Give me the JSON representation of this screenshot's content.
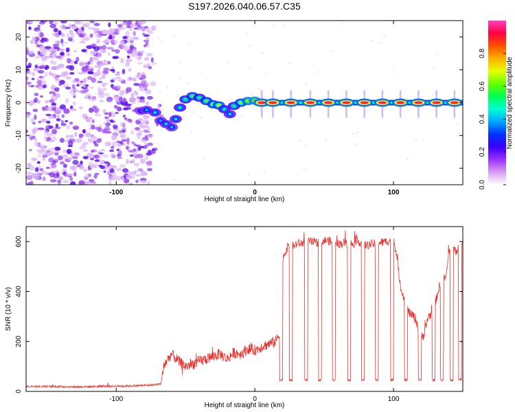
{
  "figure_title": "S197.2026.040.06.57.C35",
  "colorbar": {
    "label": "Normalized spectral amplitude",
    "ticks": [
      "0.0",
      "0.2",
      "0.4",
      "0.6",
      "0.8"
    ],
    "tick_values": [
      0.0,
      0.2,
      0.4,
      0.6,
      0.8
    ],
    "range": [
      0,
      1
    ],
    "colormap": [
      "#ffffff",
      "#d89cf0",
      "#9b30ff",
      "#3a00ff",
      "#0033ff",
      "#00a8ff",
      "#00ffd5",
      "#00ff50",
      "#66ff00",
      "#e6ff00",
      "#ffb000",
      "#ff5000",
      "#ff0040",
      "#ff40c0"
    ]
  },
  "chart_data": [
    {
      "type": "heatmap",
      "title": "",
      "xlabel": "Height of straight line (km)",
      "ylabel": "Frequency (Hz)",
      "xlim": [
        -165,
        150
      ],
      "ylim": [
        -25,
        25
      ],
      "x_ticks": [
        "-100",
        "0",
        "100"
      ],
      "x_tick_values": [
        -100,
        0,
        100
      ],
      "y_ticks": [
        "-20",
        "-10",
        "0",
        "10",
        "20"
      ],
      "y_tick_values": [
        -20,
        -10,
        0,
        10,
        20
      ],
      "noise_region_x": [
        -165,
        -75
      ],
      "noise_amplitude": 0.15,
      "signal_track": [
        {
          "x": -82,
          "y": -2.5,
          "amp": 0.35
        },
        {
          "x": -78,
          "y": -2.2,
          "amp": 0.4
        },
        {
          "x": -72,
          "y": -3.0,
          "amp": 0.45
        },
        {
          "x": -68,
          "y": -5.5,
          "amp": 0.4
        },
        {
          "x": -64,
          "y": -6.5,
          "amp": 0.45
        },
        {
          "x": -60,
          "y": -7.5,
          "amp": 0.4
        },
        {
          "x": -57,
          "y": -5.0,
          "amp": 0.45
        },
        {
          "x": -54,
          "y": -1.5,
          "amp": 0.5
        },
        {
          "x": -50,
          "y": 1.0,
          "amp": 0.55
        },
        {
          "x": -45,
          "y": 2.0,
          "amp": 0.6
        },
        {
          "x": -40,
          "y": 1.5,
          "amp": 0.55
        },
        {
          "x": -35,
          "y": 0.5,
          "amp": 0.6
        },
        {
          "x": -30,
          "y": -0.5,
          "amp": 0.65
        },
        {
          "x": -26,
          "y": -0.8,
          "amp": 0.7
        },
        {
          "x": -22,
          "y": -2.0,
          "amp": 0.5
        },
        {
          "x": -18,
          "y": -3.5,
          "amp": 0.45
        },
        {
          "x": -15,
          "y": -1.0,
          "amp": 0.55
        },
        {
          "x": -10,
          "y": 0.0,
          "amp": 0.65
        },
        {
          "x": -5,
          "y": 0.5,
          "amp": 0.75
        },
        {
          "x": 0,
          "y": 0.6,
          "amp": 0.8
        }
      ],
      "stable_segments_x": [
        5,
        13,
        26,
        40,
        53,
        66,
        79,
        92,
        105,
        118,
        131,
        144
      ],
      "stable_frequency": 0.0,
      "stable_amplitude": 0.95
    },
    {
      "type": "line",
      "title": "",
      "xlabel": "Height of straight line (km)",
      "ylabel": "SNR (10 * v/v)",
      "xlim": [
        -165,
        150
      ],
      "ylim": [
        0,
        660
      ],
      "x_ticks": [
        "-100",
        "0",
        "100"
      ],
      "x_tick_values": [
        -100,
        0,
        100
      ],
      "y_ticks": [
        "0",
        "200",
        "400",
        "600"
      ],
      "y_tick_values": [
        0,
        200,
        400,
        600
      ],
      "color": "#e8302c",
      "series": [
        {
          "x": [
            -165,
            -150,
            -130,
            -110,
            -90,
            -75,
            -68,
            -65,
            -60,
            -55,
            -50,
            -45,
            -40,
            -35,
            -30,
            -25,
            -20,
            -15,
            -10,
            -5,
            0,
            5,
            10,
            15,
            18,
            20,
            22,
            24,
            26,
            28,
            30,
            35,
            40,
            45,
            50,
            55,
            60,
            65,
            70,
            75,
            80,
            85,
            90,
            95,
            100,
            102,
            105,
            108,
            110,
            112,
            115,
            118,
            120,
            122,
            125,
            128,
            130,
            133,
            135,
            138,
            140,
            143,
            145,
            148,
            150
          ],
          "y": [
            20,
            20,
            18,
            20,
            22,
            25,
            30,
            110,
            150,
            120,
            100,
            110,
            120,
            130,
            140,
            150,
            130,
            155,
            150,
            170,
            165,
            180,
            190,
            200,
            230,
            530,
            560,
            580,
            590,
            580,
            590,
            595,
            600,
            595,
            605,
            600,
            590,
            595,
            590,
            600,
            585,
            590,
            595,
            600,
            610,
            560,
            420,
            370,
            330,
            310,
            300,
            260,
            240,
            220,
            300,
            310,
            350,
            420,
            440,
            460,
            560,
            570,
            560,
            590,
            600
          ],
          "drop_gaps": [
            [
              18,
              20
            ],
            [
              25,
              27
            ],
            [
              36,
              38
            ],
            [
              46,
              48
            ],
            [
              56,
              58
            ],
            [
              67,
              69
            ],
            [
              77,
              79
            ],
            [
              87,
              89
            ],
            [
              98,
              100
            ],
            [
              108,
              110
            ],
            [
              118,
              120
            ],
            [
              128,
              130
            ],
            [
              134,
              136
            ],
            [
              141,
              143
            ],
            [
              147,
              149
            ]
          ],
          "gap_value": 45
        }
      ]
    }
  ]
}
